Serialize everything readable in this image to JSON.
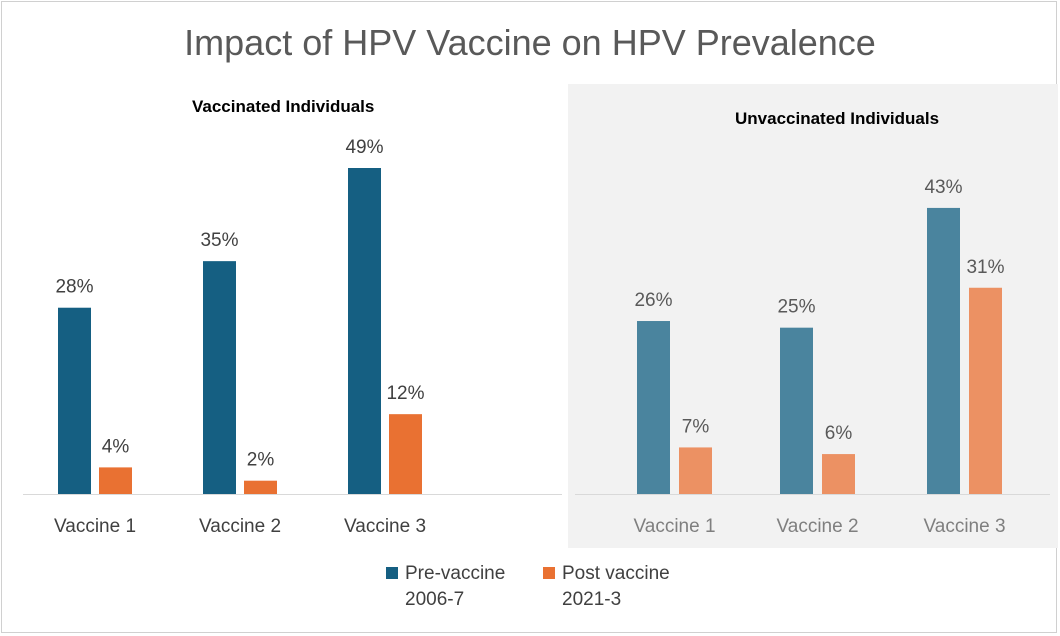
{
  "title": "Impact of HPV Vaccine on HPV Prevalence",
  "colors": {
    "pre_vaccinated": "#155f82",
    "post_vaccinated": "#e97132",
    "pre_unvaccinated": "#4a849e",
    "post_unvaccinated": "#ec9163",
    "panel_background": "#f2f2f2",
    "axis": "#d9d9d9"
  },
  "legend": {
    "pre": "Pre-vaccine\n2006-7",
    "post": "Post vaccine\n2021-3"
  },
  "chart_data": [
    {
      "type": "bar",
      "title": "Vaccinated Individuals",
      "categories": [
        "Vaccine 1",
        "Vaccine 2",
        "Vaccine 3"
      ],
      "series": [
        {
          "name": "Pre-vaccine 2006-7",
          "values": [
            28,
            35,
            49
          ],
          "labels": [
            "28%",
            "35%",
            "49%"
          ]
        },
        {
          "name": "Post vaccine 2021-3",
          "values": [
            4,
            2,
            12
          ],
          "labels": [
            "4%",
            "2%",
            "12%"
          ]
        }
      ],
      "ylim": [
        0,
        49
      ],
      "xlabel": "",
      "ylabel": ""
    },
    {
      "type": "bar",
      "title": "Unvaccinated Individuals",
      "categories": [
        "Vaccine 1",
        "Vaccine 2",
        "Vaccine 3"
      ],
      "series": [
        {
          "name": "Pre-vaccine 2006-7",
          "values": [
            26,
            25,
            43
          ],
          "labels": [
            "26%",
            "25%",
            "43%"
          ]
        },
        {
          "name": "Post vaccine 2021-3",
          "values": [
            7,
            6,
            31
          ],
          "labels": [
            "7%",
            "6%",
            "31%"
          ]
        }
      ],
      "ylim": [
        0,
        49
      ],
      "xlabel": "",
      "ylabel": ""
    }
  ]
}
